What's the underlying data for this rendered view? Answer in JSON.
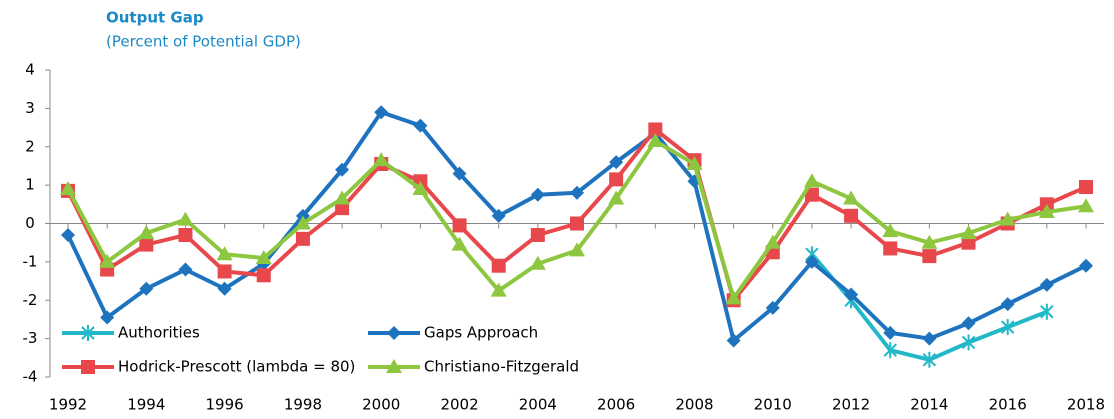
{
  "chart_data": {
    "type": "line",
    "title": "Output Gap",
    "subtitle": "(Percent of Potential GDP)",
    "x": [
      1992,
      1993,
      1994,
      1995,
      1996,
      1997,
      1998,
      1999,
      2000,
      2001,
      2002,
      2003,
      2004,
      2005,
      2006,
      2007,
      2008,
      2009,
      2010,
      2011,
      2012,
      2013,
      2014,
      2015,
      2016,
      2017,
      2018
    ],
    "xlim": [
      1992,
      2018
    ],
    "xticks": [
      1992,
      1994,
      1996,
      1998,
      2000,
      2002,
      2004,
      2006,
      2008,
      2010,
      2012,
      2014,
      2016,
      2018
    ],
    "ylim": [
      -4,
      4
    ],
    "yticks": [
      -4,
      -3,
      -2,
      -1,
      0,
      1,
      2,
      3,
      4
    ],
    "legend": "lower-left",
    "series": [
      {
        "name": "Authorities",
        "color": "#22b8c8",
        "marker": "asterisk",
        "values": [
          null,
          null,
          null,
          null,
          null,
          null,
          null,
          null,
          null,
          null,
          null,
          null,
          null,
          null,
          null,
          null,
          null,
          null,
          null,
          -0.8,
          -2.0,
          -3.3,
          -3.55,
          -3.1,
          -2.7,
          -2.3,
          null
        ]
      },
      {
        "name": "Gaps Approach",
        "color": "#1e73be",
        "marker": "diamond",
        "values": [
          -0.3,
          -2.45,
          -1.7,
          -1.2,
          -1.7,
          -1.05,
          0.2,
          1.4,
          2.9,
          2.55,
          1.3,
          0.2,
          0.75,
          0.8,
          1.6,
          2.35,
          1.1,
          -3.05,
          -2.2,
          -1.0,
          -1.85,
          -2.85,
          -3.0,
          -2.6,
          -2.1,
          -1.6,
          -1.1
        ]
      },
      {
        "name": "Hodrick-Prescott (lambda = 80)",
        "color": "#e8474b",
        "marker": "square",
        "values": [
          0.85,
          -1.2,
          -0.55,
          -0.3,
          -1.25,
          -1.35,
          -0.4,
          0.4,
          1.55,
          1.1,
          -0.05,
          -1.1,
          -0.3,
          0.0,
          1.15,
          2.45,
          1.65,
          -2.0,
          -0.75,
          0.75,
          0.2,
          -0.65,
          -0.85,
          -0.5,
          0.0,
          0.5,
          0.95
        ]
      },
      {
        "name": "Christiano-Fitzgerald",
        "color": "#8dc63f",
        "marker": "triangle",
        "values": [
          0.9,
          -1.0,
          -0.25,
          0.1,
          -0.8,
          -0.9,
          0.0,
          0.65,
          1.65,
          0.9,
          -0.55,
          -1.75,
          -1.05,
          -0.7,
          0.65,
          2.15,
          1.55,
          -1.95,
          -0.5,
          1.1,
          0.65,
          -0.2,
          -0.5,
          -0.25,
          0.1,
          0.3,
          0.45
        ]
      }
    ]
  }
}
